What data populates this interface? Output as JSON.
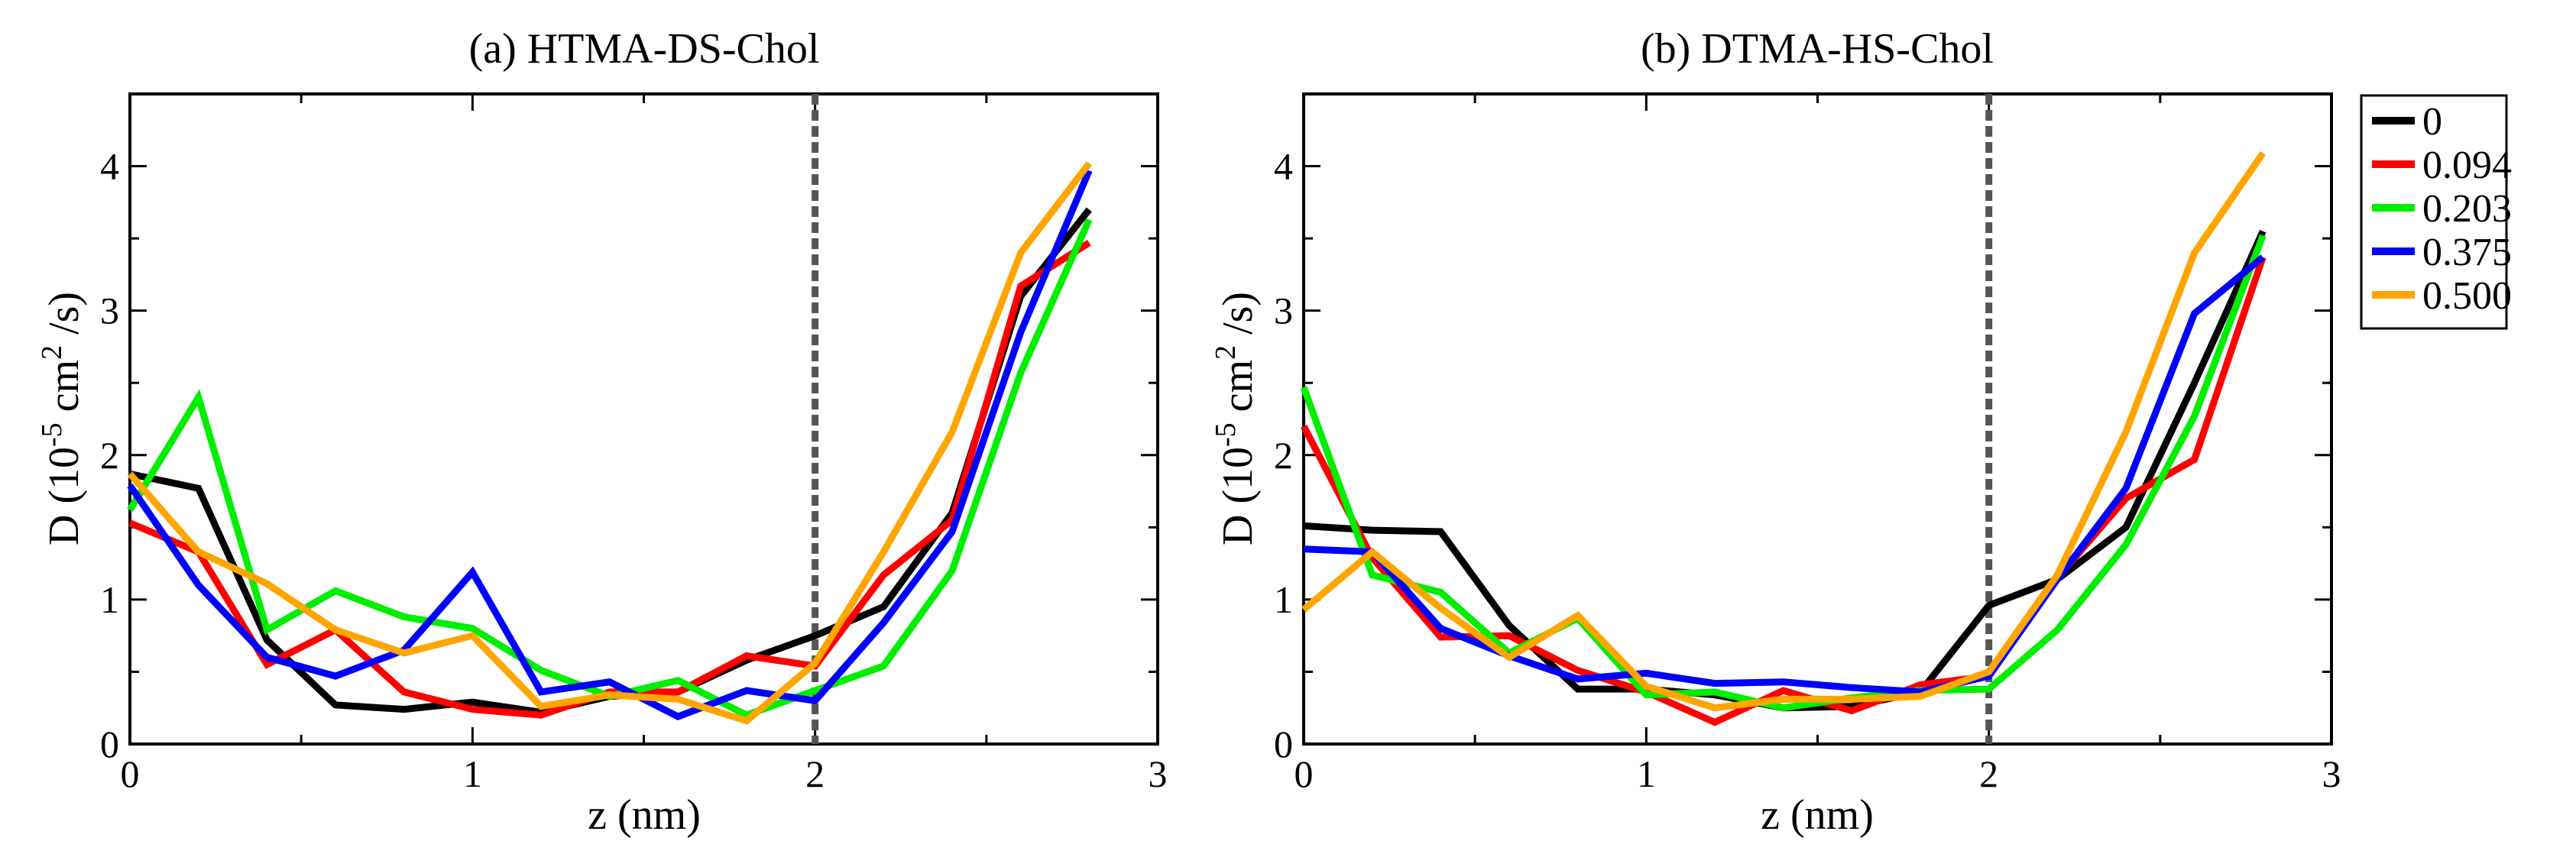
{
  "figure": {
    "y_axis_label_main": "D (10",
    "y_axis_label_exp1": "-5",
    "y_axis_label_mid": " cm",
    "y_axis_label_exp2": "2",
    "y_axis_label_tail": " /s)"
  },
  "legend": {
    "entries": [
      {
        "label": "0",
        "color": "#000000"
      },
      {
        "label": "0.094",
        "color": "#ff0000"
      },
      {
        "label": "0.203",
        "color": "#00ee00"
      },
      {
        "label": "0.375",
        "color": "#0000ff"
      },
      {
        "label": "0.500",
        "color": "#ffa500"
      }
    ]
  },
  "chart_data": [
    {
      "type": "line",
      "title": "(a) HTMA-DS-Chol",
      "xlabel": "z (nm)",
      "ylabel": "D (10^-5 cm^2 /s)",
      "xlim": [
        0,
        3
      ],
      "ylim": [
        0,
        4.5
      ],
      "xticks": [
        0,
        1,
        2,
        3
      ],
      "yticks": [
        0,
        1,
        2,
        3,
        4
      ],
      "vline": 2,
      "x": [
        0,
        0.2,
        0.4,
        0.6,
        0.8,
        1.0,
        1.2,
        1.4,
        1.6,
        1.8,
        2.0,
        2.2,
        2.4,
        2.6,
        2.8
      ],
      "series": [
        {
          "name": "0",
          "color": "#000000",
          "values": [
            1.87,
            1.77,
            0.72,
            0.27,
            0.24,
            0.29,
            0.22,
            0.33,
            0.36,
            0.58,
            0.75,
            0.95,
            1.6,
            3.1,
            3.7
          ]
        },
        {
          "name": "0.094",
          "color": "#ff0000",
          "values": [
            1.53,
            1.33,
            0.55,
            0.79,
            0.36,
            0.24,
            0.2,
            0.36,
            0.36,
            0.61,
            0.54,
            1.17,
            1.55,
            3.17,
            3.47
          ]
        },
        {
          "name": "0.203",
          "color": "#00ee00",
          "values": [
            1.62,
            2.4,
            0.79,
            1.06,
            0.88,
            0.8,
            0.51,
            0.33,
            0.44,
            0.2,
            0.37,
            0.54,
            1.2,
            2.57,
            3.63
          ]
        },
        {
          "name": "0.375",
          "color": "#0000ff",
          "values": [
            1.79,
            1.1,
            0.6,
            0.47,
            0.65,
            1.19,
            0.36,
            0.43,
            0.19,
            0.37,
            0.3,
            0.84,
            1.47,
            2.85,
            3.97
          ]
        },
        {
          "name": "0.500",
          "color": "#ffa500",
          "values": [
            1.87,
            1.33,
            1.11,
            0.79,
            0.63,
            0.75,
            0.26,
            0.34,
            0.31,
            0.16,
            0.56,
            1.33,
            2.16,
            3.4,
            4.02
          ]
        }
      ]
    },
    {
      "type": "line",
      "title": "(b) DTMA-HS-Chol",
      "xlabel": "z (nm)",
      "ylabel": "D (10^-5 cm^2 /s)",
      "xlim": [
        0,
        3
      ],
      "ylim": [
        0,
        4.5
      ],
      "xticks": [
        0,
        1,
        2,
        3
      ],
      "yticks": [
        0,
        1,
        2,
        3,
        4
      ],
      "vline": 2,
      "x": [
        0,
        0.2,
        0.4,
        0.6,
        0.8,
        1.0,
        1.2,
        1.4,
        1.6,
        1.8,
        2.0,
        2.2,
        2.4,
        2.6,
        2.8
      ],
      "series": [
        {
          "name": "0",
          "color": "#000000",
          "values": [
            1.51,
            1.48,
            1.47,
            0.82,
            0.38,
            0.38,
            0.34,
            0.25,
            0.26,
            0.36,
            0.96,
            1.14,
            1.5,
            2.5,
            3.55
          ]
        },
        {
          "name": "0.094",
          "color": "#ff0000",
          "values": [
            2.2,
            1.29,
            0.74,
            0.75,
            0.51,
            0.36,
            0.15,
            0.37,
            0.23,
            0.41,
            0.47,
            1.15,
            1.7,
            1.97,
            3.37
          ]
        },
        {
          "name": "0.203",
          "color": "#00ee00",
          "values": [
            2.47,
            1.17,
            1.05,
            0.63,
            0.87,
            0.34,
            0.36,
            0.25,
            0.32,
            0.37,
            0.38,
            0.79,
            1.38,
            2.27,
            3.52
          ]
        },
        {
          "name": "0.375",
          "color": "#0000ff",
          "values": [
            1.35,
            1.33,
            0.8,
            0.61,
            0.45,
            0.49,
            0.42,
            0.43,
            0.39,
            0.36,
            0.47,
            1.14,
            1.77,
            2.98,
            3.37
          ]
        },
        {
          "name": "0.500",
          "color": "#ffa500",
          "values": [
            0.93,
            1.33,
            0.94,
            0.6,
            0.89,
            0.4,
            0.25,
            0.31,
            0.31,
            0.33,
            0.5,
            1.17,
            2.16,
            3.4,
            4.09
          ]
        }
      ]
    }
  ]
}
